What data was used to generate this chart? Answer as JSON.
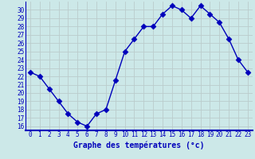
{
  "hours": [
    0,
    1,
    2,
    3,
    4,
    5,
    6,
    7,
    8,
    9,
    10,
    11,
    12,
    13,
    14,
    15,
    16,
    17,
    18,
    19,
    20,
    21,
    22,
    23
  ],
  "temps": [
    22.5,
    22.0,
    20.5,
    19.0,
    17.5,
    16.5,
    16.0,
    17.5,
    18.0,
    21.5,
    25.0,
    26.5,
    28.0,
    28.0,
    29.5,
    30.5,
    30.0,
    29.0,
    30.5,
    29.5,
    28.5,
    26.5,
    24.0,
    22.5
  ],
  "bg_color": "#cce8e8",
  "line_color": "#0000bb",
  "grid_color": "#bbcccc",
  "xlabel": "Graphe des températures (°c)",
  "ylim": [
    15.5,
    31.0
  ],
  "xlim": [
    -0.5,
    23.5
  ],
  "yticks": [
    16,
    17,
    18,
    19,
    20,
    21,
    22,
    23,
    24,
    25,
    26,
    27,
    28,
    29,
    30
  ],
  "xticks": [
    0,
    1,
    2,
    3,
    4,
    5,
    6,
    7,
    8,
    9,
    10,
    11,
    12,
    13,
    14,
    15,
    16,
    17,
    18,
    19,
    20,
    21,
    22,
    23
  ],
  "tick_fontsize": 5.5,
  "label_fontsize": 7,
  "line_width": 1.0,
  "marker_size": 3.5
}
